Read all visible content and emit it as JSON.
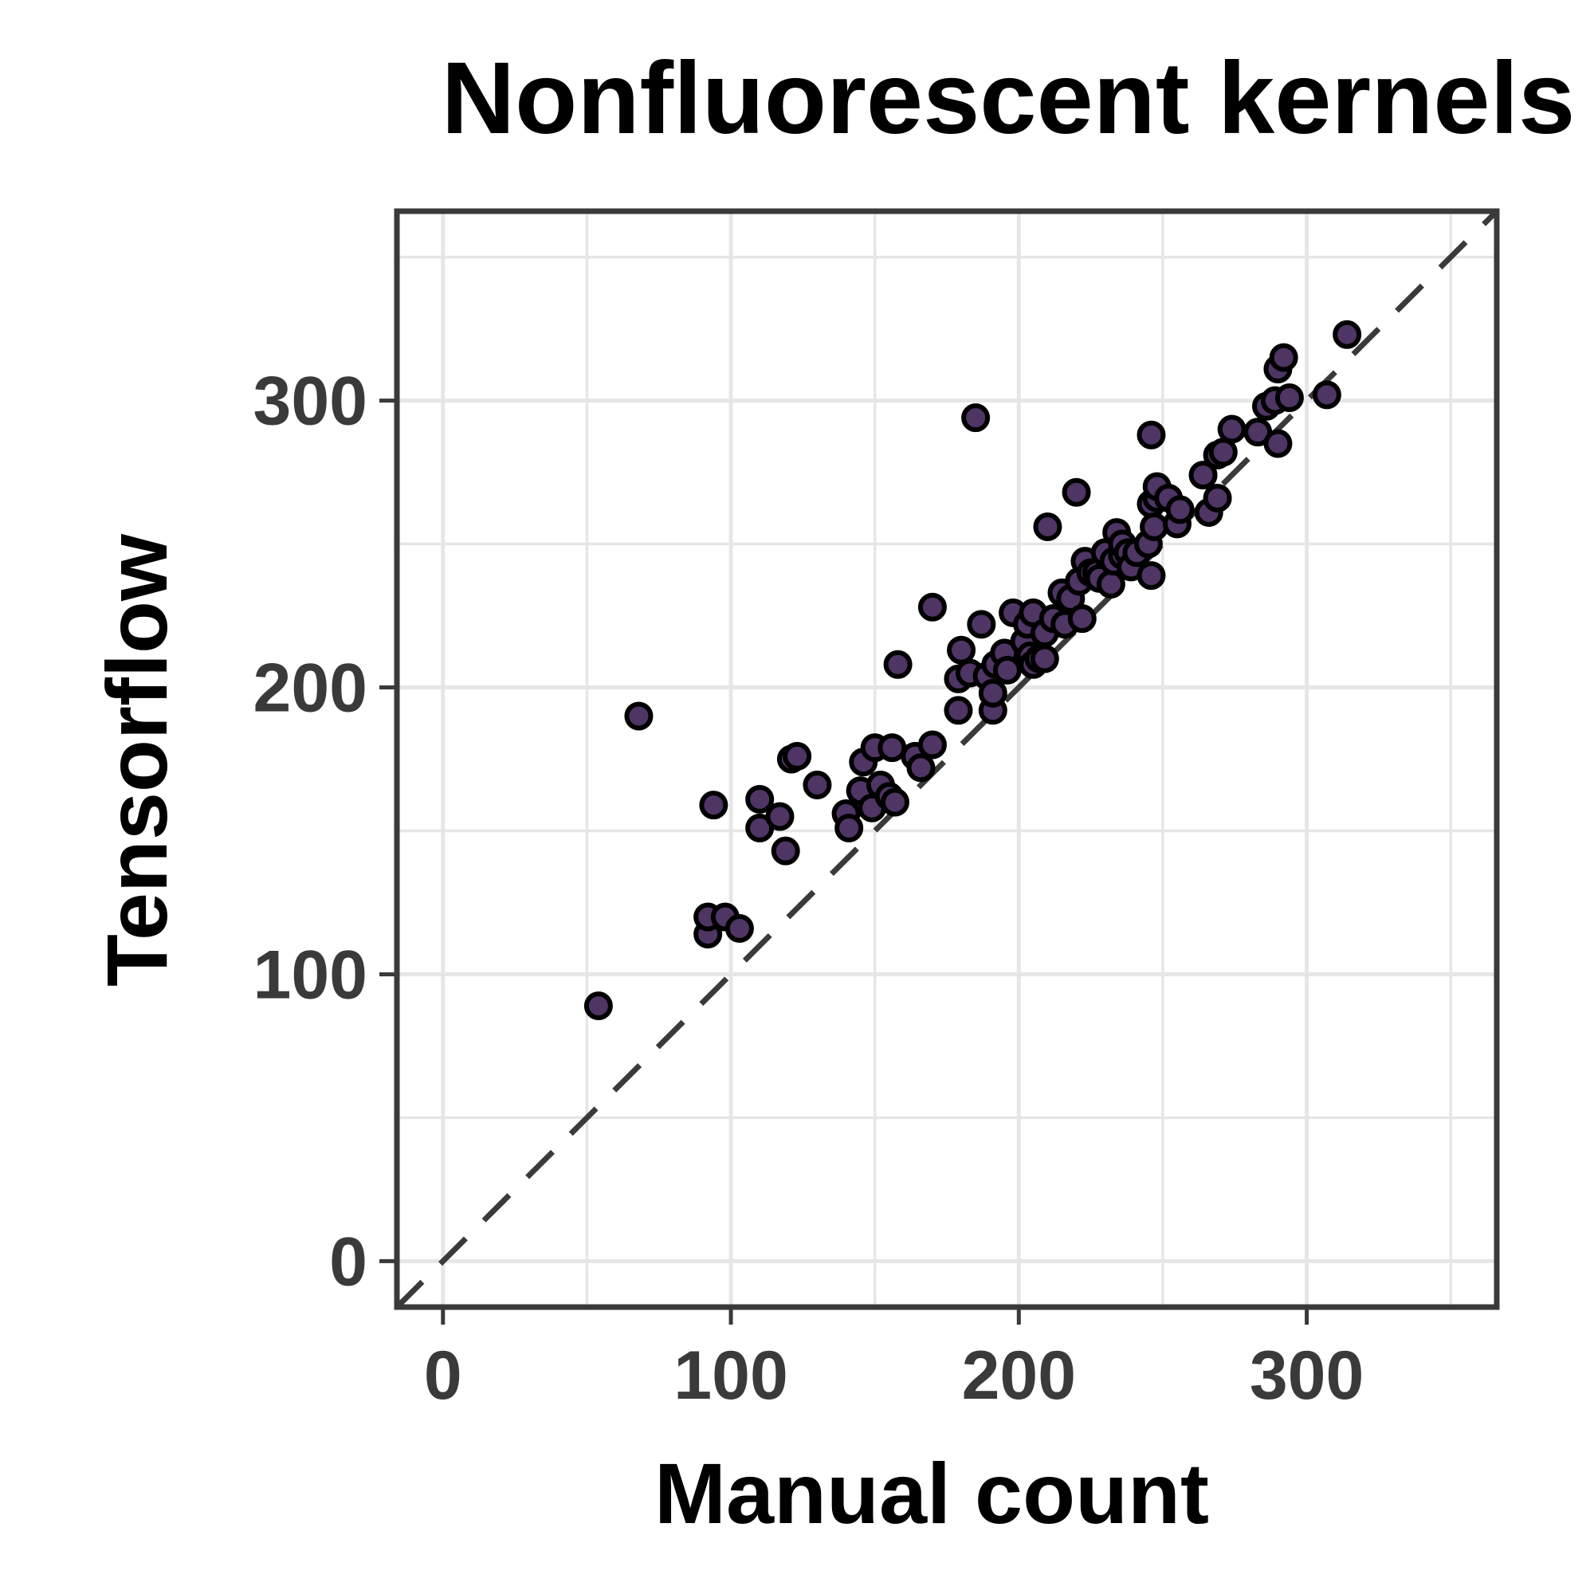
{
  "chart_data": {
    "type": "scatter",
    "title": "Nonfluorescent kernels",
    "xlabel": "Manual count",
    "ylabel": "Tensorflow",
    "xlim": [
      -16,
      366
    ],
    "ylim": [
      -16,
      366
    ],
    "x_ticks": [
      0,
      100,
      200,
      300
    ],
    "y_ticks": [
      0,
      100,
      200,
      300
    ],
    "minor_ticks": [
      50,
      150,
      250,
      350
    ],
    "grid": true,
    "reference_line": {
      "style": "dashed",
      "slope": 1,
      "intercept": 0
    },
    "point_color": "#4e3564",
    "point_edge_color": "#000000",
    "points": [
      [
        54,
        89
      ],
      [
        68,
        190
      ],
      [
        92,
        114
      ],
      [
        92,
        120
      ],
      [
        94,
        159
      ],
      [
        98,
        120
      ],
      [
        103,
        116
      ],
      [
        110,
        151
      ],
      [
        110,
        161
      ],
      [
        117,
        155
      ],
      [
        119,
        143
      ],
      [
        121,
        175
      ],
      [
        123,
        176
      ],
      [
        130,
        166
      ],
      [
        140,
        156
      ],
      [
        141,
        151
      ],
      [
        145,
        164
      ],
      [
        146,
        174
      ],
      [
        149,
        158
      ],
      [
        150,
        179
      ],
      [
        152,
        166
      ],
      [
        155,
        162
      ],
      [
        156,
        179
      ],
      [
        157,
        160
      ],
      [
        158,
        208
      ],
      [
        164,
        176
      ],
      [
        166,
        172
      ],
      [
        170,
        228
      ],
      [
        170,
        180
      ],
      [
        179,
        192
      ],
      [
        179,
        203
      ],
      [
        180,
        213
      ],
      [
        183,
        205
      ],
      [
        185,
        294
      ],
      [
        187,
        222
      ],
      [
        189,
        204
      ],
      [
        191,
        192
      ],
      [
        191,
        198
      ],
      [
        192,
        208
      ],
      [
        195,
        212
      ],
      [
        196,
        206
      ],
      [
        198,
        226
      ],
      [
        202,
        216
      ],
      [
        203,
        222
      ],
      [
        204,
        211
      ],
      [
        205,
        226
      ],
      [
        205,
        208
      ],
      [
        207,
        210
      ],
      [
        209,
        210
      ],
      [
        209,
        219
      ],
      [
        210,
        256
      ],
      [
        212,
        224
      ],
      [
        215,
        233
      ],
      [
        216,
        222
      ],
      [
        218,
        231
      ],
      [
        220,
        268
      ],
      [
        221,
        237
      ],
      [
        222,
        224
      ],
      [
        223,
        244
      ],
      [
        225,
        240
      ],
      [
        227,
        240
      ],
      [
        228,
        238
      ],
      [
        230,
        247
      ],
      [
        232,
        236
      ],
      [
        233,
        244
      ],
      [
        234,
        254
      ],
      [
        236,
        246
      ],
      [
        236,
        250
      ],
      [
        238,
        247
      ],
      [
        239,
        242
      ],
      [
        241,
        247
      ],
      [
        245,
        250
      ],
      [
        246,
        264
      ],
      [
        246,
        288
      ],
      [
        246,
        239
      ],
      [
        247,
        256
      ],
      [
        248,
        266
      ],
      [
        248,
        270
      ],
      [
        252,
        266
      ],
      [
        255,
        257
      ],
      [
        256,
        262
      ],
      [
        264,
        274
      ],
      [
        266,
        261
      ],
      [
        269,
        281
      ],
      [
        269,
        266
      ],
      [
        271,
        282
      ],
      [
        274,
        290
      ],
      [
        283,
        289
      ],
      [
        286,
        298
      ],
      [
        289,
        300
      ],
      [
        290,
        311
      ],
      [
        290,
        285
      ],
      [
        292,
        315
      ],
      [
        294,
        301
      ],
      [
        307,
        302
      ],
      [
        314,
        323
      ]
    ]
  }
}
